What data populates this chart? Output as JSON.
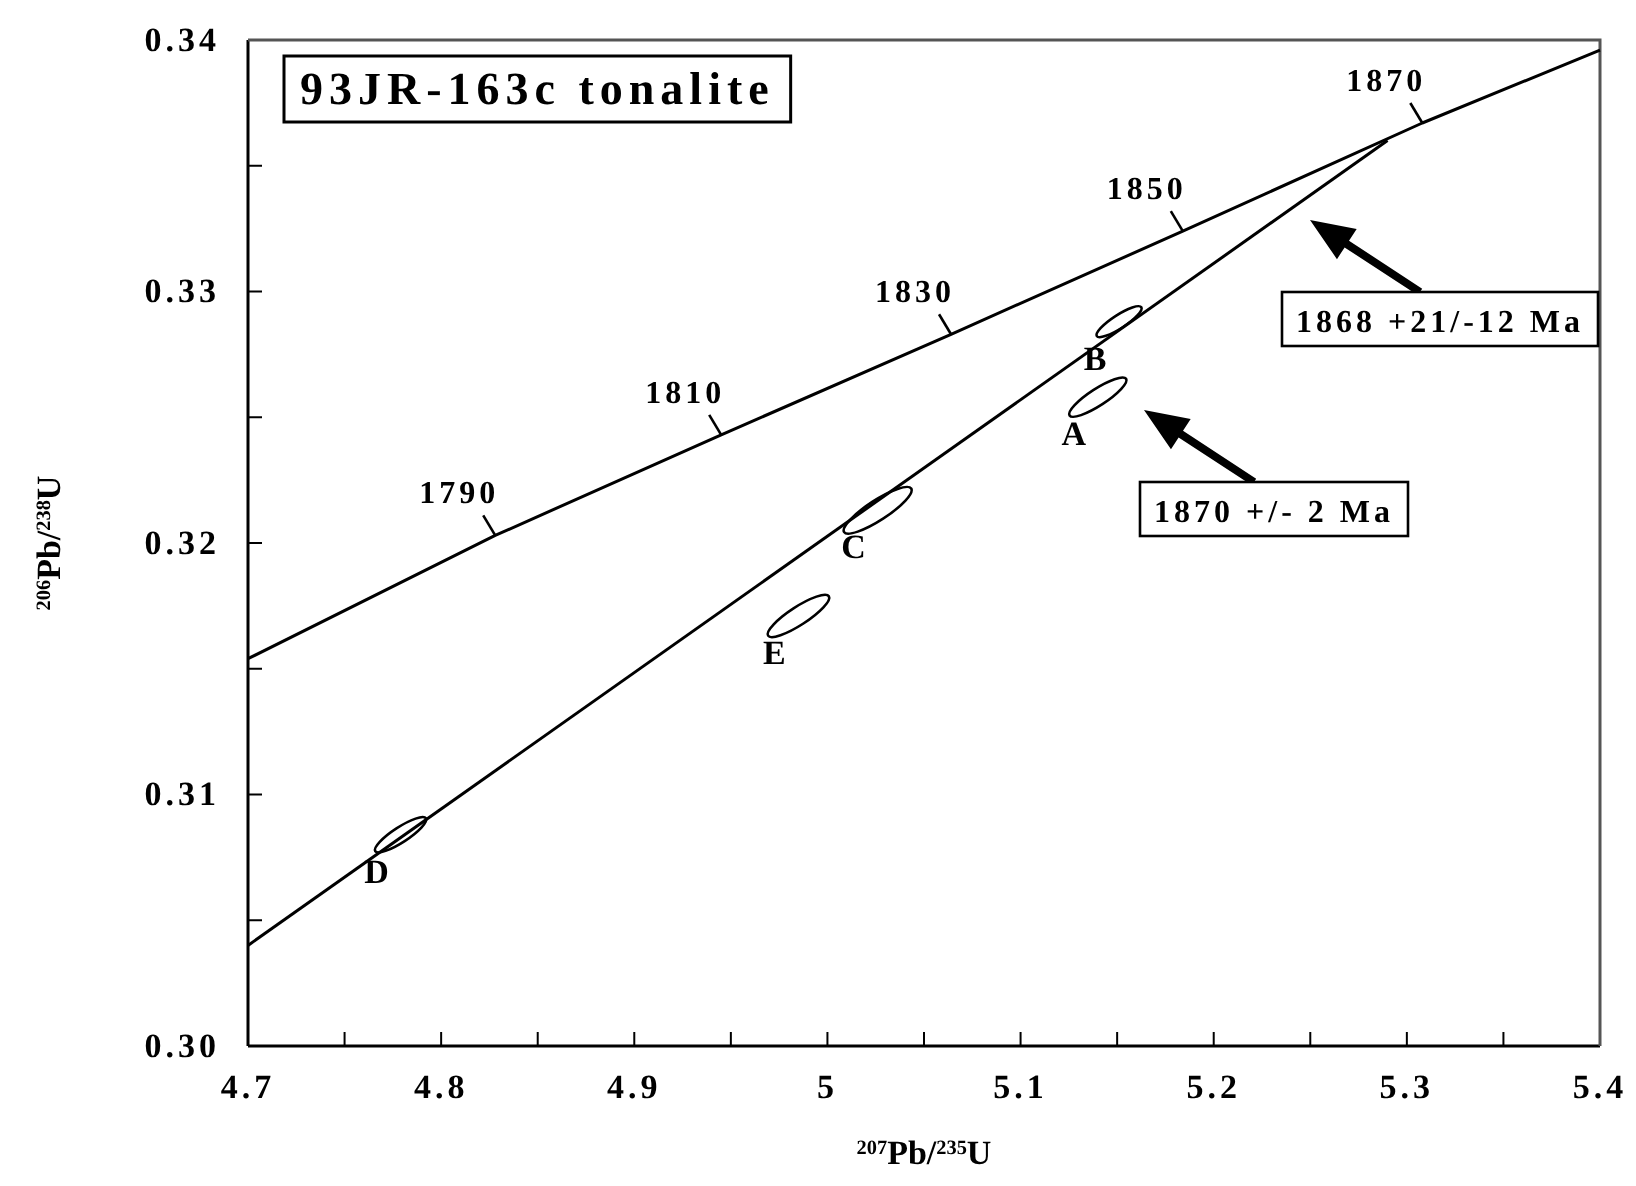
{
  "chart_data": {
    "type": "line",
    "title": "93JR-163c tonalite",
    "xlabel": "$^{207}$Pb/$^{235}$U",
    "ylabel": "$^{206}$Pb/$^{238}$U",
    "xlim": [
      4.7,
      5.4
    ],
    "ylim": [
      0.3,
      0.34
    ],
    "xticks": [
      4.7,
      {
        "value": 4.75,
        "label": null
      },
      4.8,
      {
        "value": 4.85,
        "label": null
      },
      4.9,
      {
        "value": 4.95,
        "label": null
      },
      5.0,
      {
        "value": 5.05,
        "label": null
      },
      5.1,
      {
        "value": 5.15,
        "label": null
      },
      5.2,
      {
        "value": 5.25,
        "label": null
      },
      5.3,
      {
        "value": 5.35,
        "label": null
      },
      5.4
    ],
    "yticks": [
      {
        "value": 0.3,
        "label": "0.30"
      },
      {
        "value": 0.305,
        "label": null
      },
      {
        "value": 0.31,
        "label": "0.31"
      },
      {
        "value": 0.315,
        "label": null
      },
      {
        "value": 0.32,
        "label": "0.32"
      },
      {
        "value": 0.325,
        "label": null
      },
      {
        "value": 0.33,
        "label": "0.33"
      },
      {
        "value": 0.335,
        "label": null
      },
      {
        "value": 0.34,
        "label": "0.34"
      }
    ],
    "grid": false,
    "series": [
      {
        "color": "#000000",
        "x": [
          4.7,
          4.828,
          4.945,
          5.064,
          5.184,
          5.308,
          5.4
        ],
        "values": [
          0.3154,
          0.3203,
          0.3243,
          0.3283,
          0.3324,
          0.3367,
          0.3396
        ]
      },
      {
        "color": "#000000",
        "x": [
          4.7,
          5.29
        ],
        "values": [
          0.304,
          0.336
        ]
      },
      {
        "type": "scatter",
        "color": "#000000",
        "x": [
          5.14,
          5.151,
          5.026,
          4.779,
          4.985
        ],
        "values": [
          0.3258,
          0.3288,
          0.3213,
          0.3084,
          0.3171
        ],
        "sizes": [
          0.71,
          0.44,
          1,
          0.57,
          0.82
        ],
        "value_labels": [
          "A",
          "B",
          "C",
          "D",
          "E"
        ]
      }
    ],
    "annotations": [
      {
        "text": "1790",
        "x": 4.828,
        "y": 0.3203
      },
      {
        "text": "1810",
        "x": 4.945,
        "y": 0.3243
      },
      {
        "text": "1830",
        "x": 5.064,
        "y": 0.3283
      },
      {
        "text": "1850",
        "x": 5.184,
        "y": 0.3324
      },
      {
        "text": "1870",
        "x": 5.308,
        "y": 0.3367
      },
      "1868 +21/-12 Ma",
      "1870 +/- 2 Ma"
    ]
  }
}
